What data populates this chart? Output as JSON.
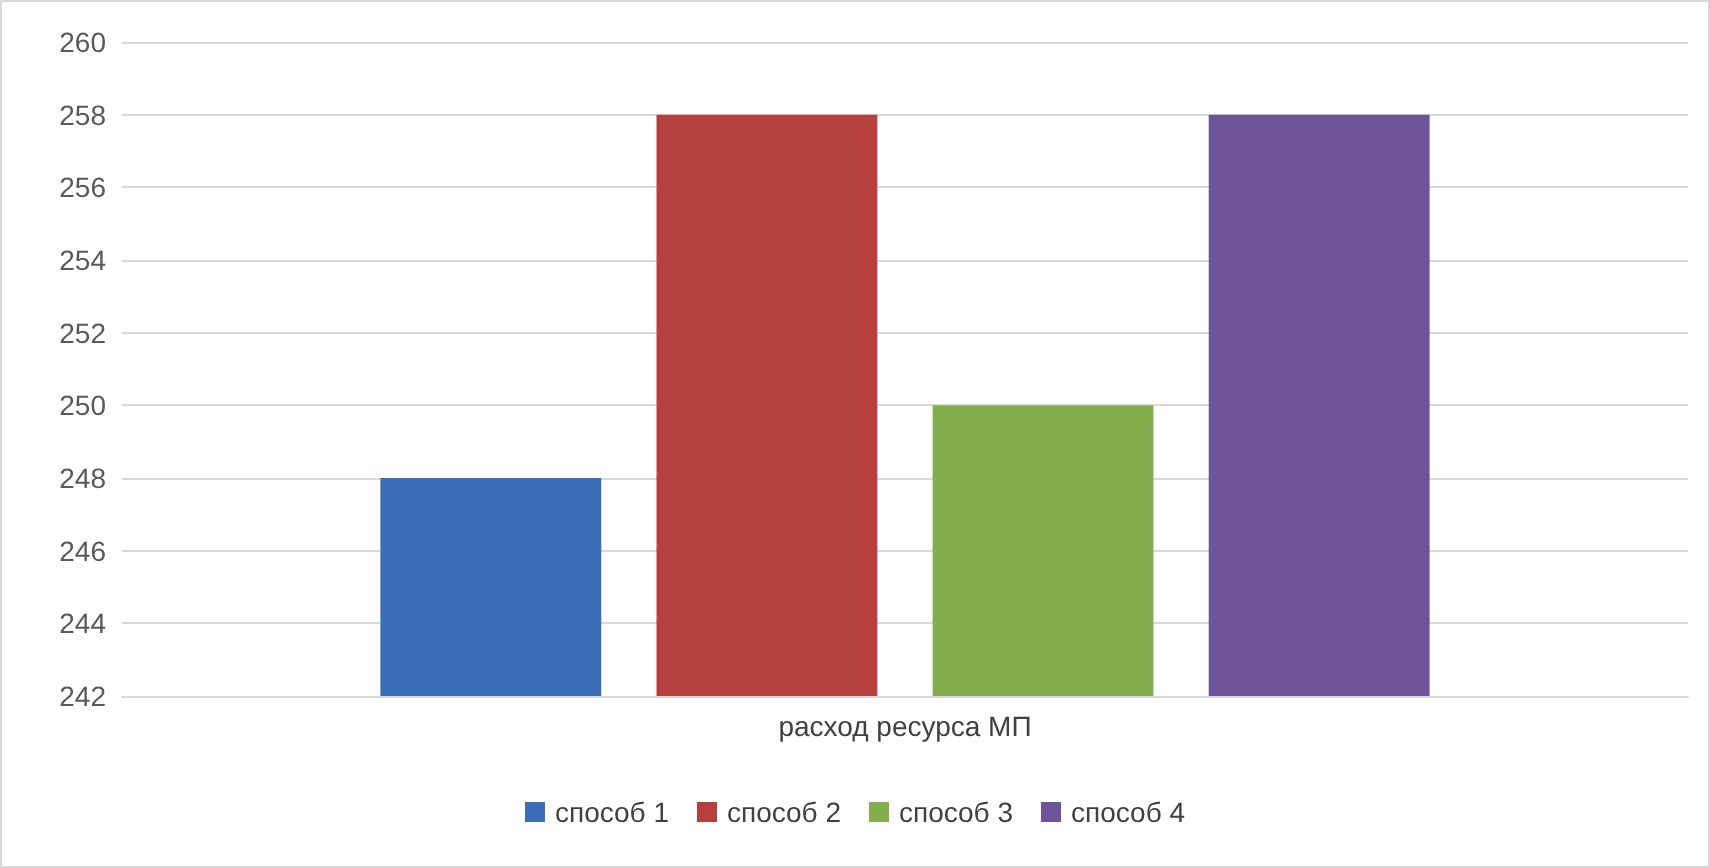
{
  "chart_data": {
    "type": "bar",
    "categories": [
      "расход ресурса МП"
    ],
    "series": [
      {
        "name": "способ 1",
        "color": "#3a6fb8",
        "values": [
          248
        ]
      },
      {
        "name": "способ 2",
        "color": "#b5403e",
        "values": [
          258
        ]
      },
      {
        "name": "способ 3",
        "color": "#84ad4e",
        "values": [
          250
        ]
      },
      {
        "name": "способ 4",
        "color": "#6e5499",
        "values": [
          258
        ]
      }
    ],
    "ylim": [
      242,
      260
    ],
    "yticks": [
      242,
      244,
      246,
      248,
      250,
      252,
      254,
      256,
      258,
      260
    ],
    "grid": "y",
    "legend": "bottom"
  }
}
